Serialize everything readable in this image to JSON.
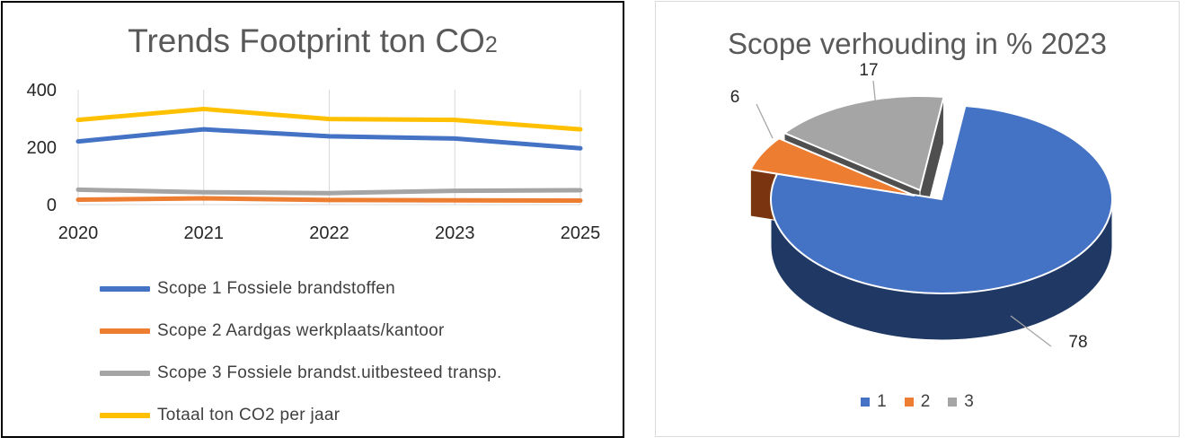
{
  "colors": {
    "scope1": "#4472C4",
    "scope2": "#ED7D31",
    "scope3": "#A5A5A5",
    "totaal": "#FFC000",
    "gridline": "#d9d9d9",
    "axis_text": "#262626"
  },
  "chart_data": [
    {
      "type": "line",
      "title": "Trends Footprint ton CO",
      "title_subscript": "2",
      "x": [
        "2020",
        "2021",
        "2022",
        "2023",
        "2025"
      ],
      "yticks": [
        "400",
        "200",
        "0"
      ],
      "ylim": [
        0,
        400
      ],
      "grid": "vertical",
      "legend_position": "bottom",
      "series": [
        {
          "name": "Scope 1 Fossiele brandstoffen",
          "values": [
            220,
            262,
            238,
            230,
            196
          ]
        },
        {
          "name": "Scope 2 Aardgas werkplaats/kantoor",
          "values": [
            17,
            22,
            16,
            15,
            14
          ]
        },
        {
          "name": "Scope 3 Fossiele brandst.uitbesteed transp.",
          "values": [
            52,
            43,
            40,
            48,
            50
          ]
        },
        {
          "name": "Totaal ton CO2 per jaar",
          "values": [
            295,
            333,
            298,
            295,
            262
          ]
        }
      ]
    },
    {
      "type": "pie",
      "title": "Scope verhouding in % 2023",
      "categories": [
        "1",
        "2",
        "3"
      ],
      "values": [
        78,
        6,
        17
      ],
      "data_labels": [
        "78",
        "6",
        "17"
      ],
      "legend_position": "bottom",
      "exploded": true,
      "three_d": true
    }
  ]
}
